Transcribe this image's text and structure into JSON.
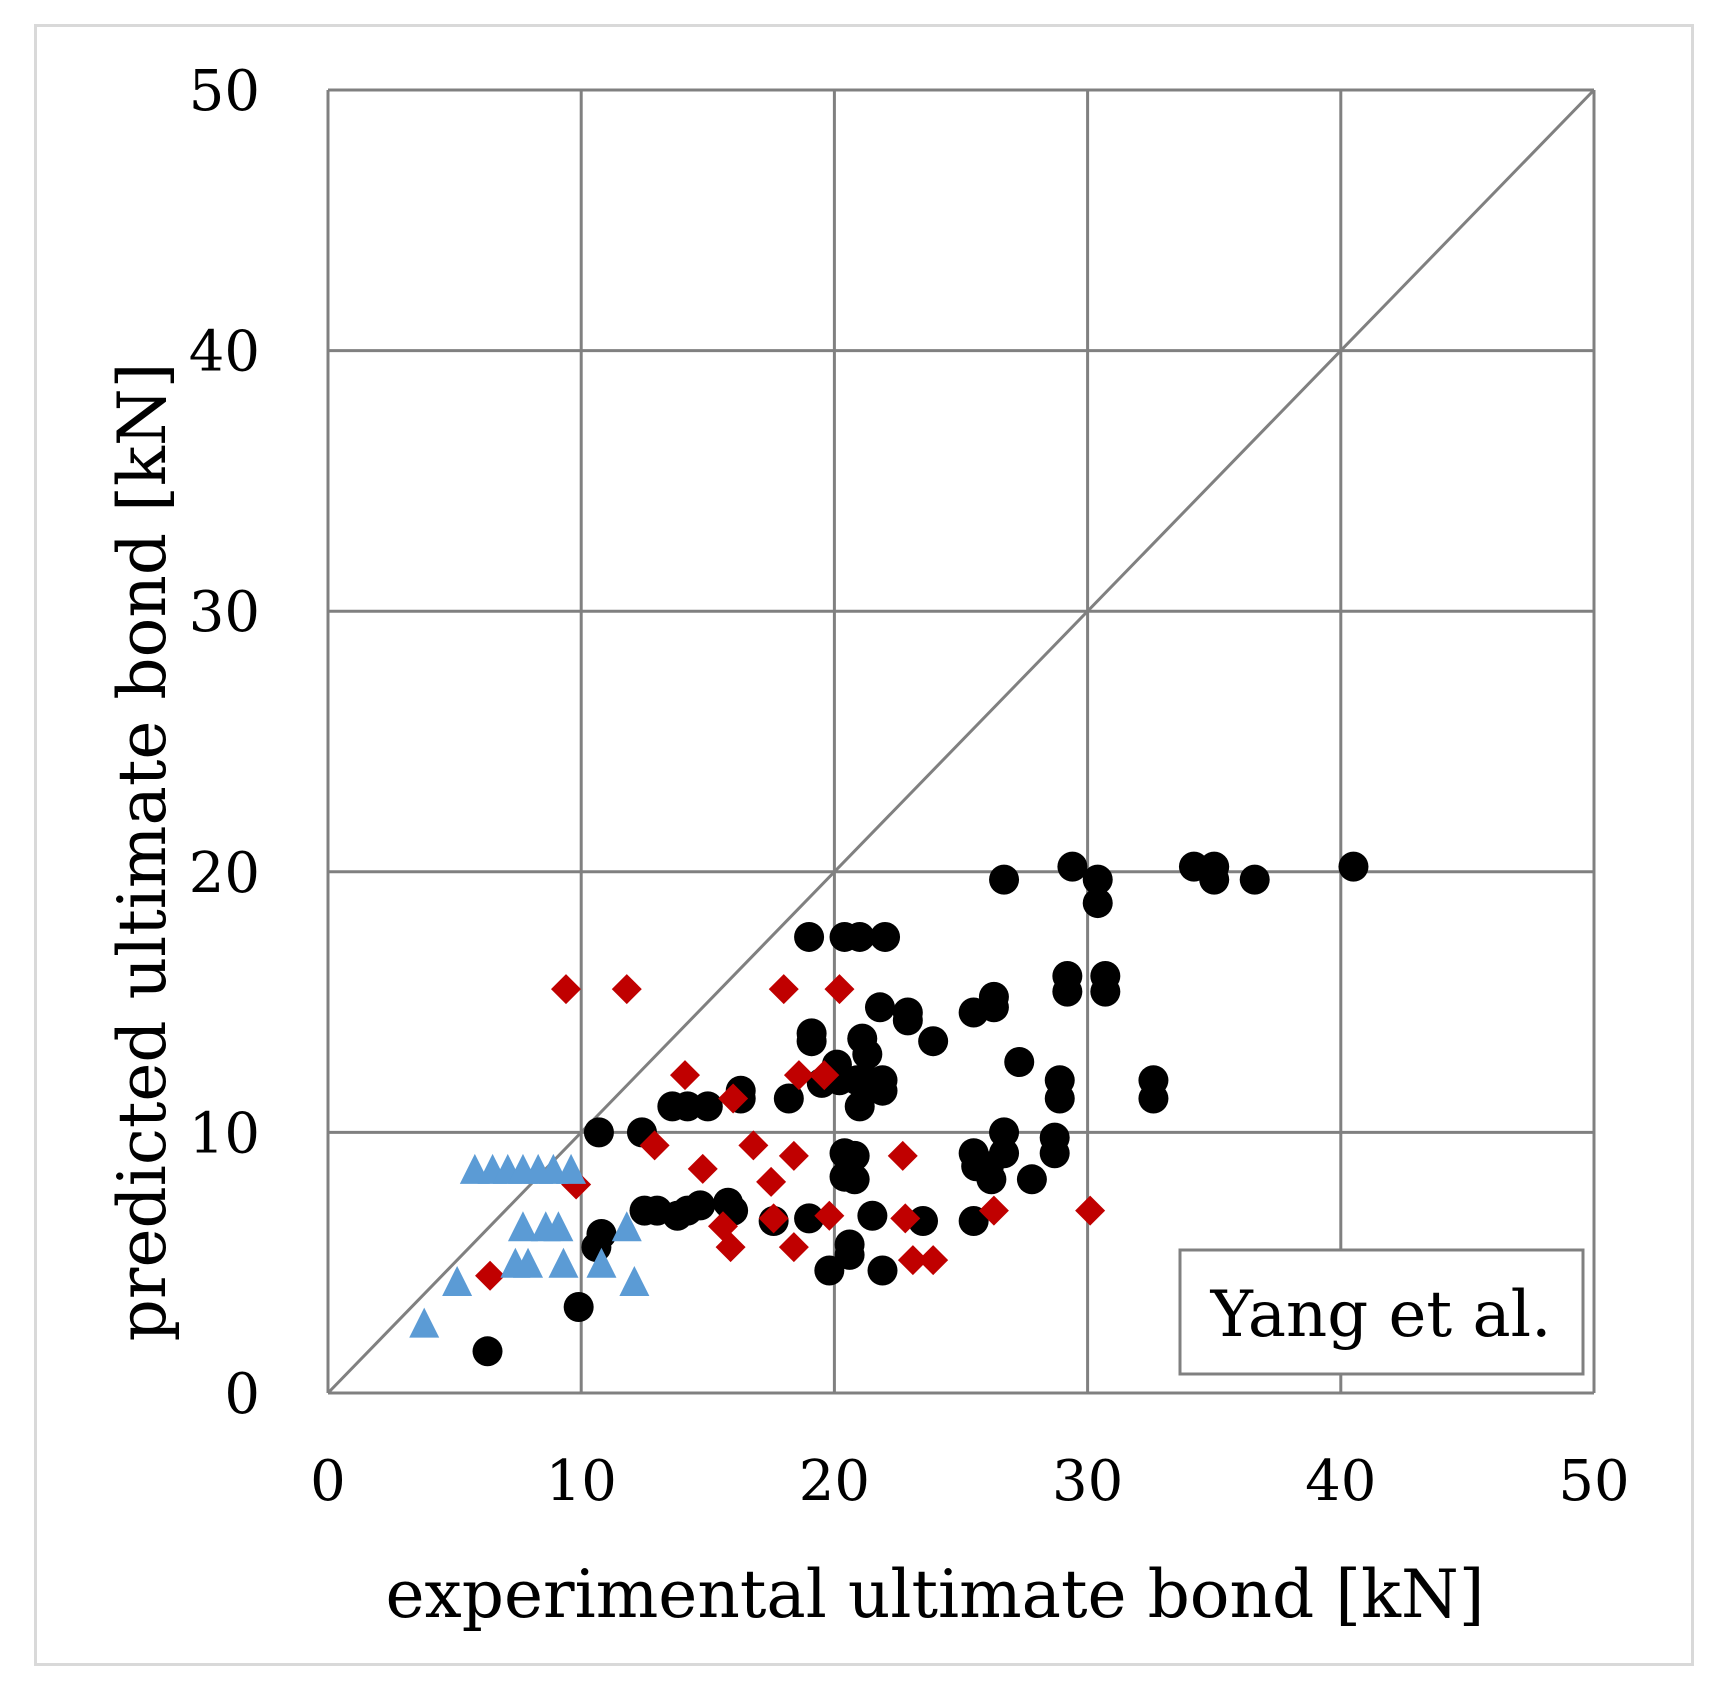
{
  "chart_data": {
    "type": "scatter",
    "title": "",
    "xlabel": "experimental ultimate bond [kN]",
    "ylabel": "predicted ultimate bond [kN]",
    "xlim": [
      0,
      50
    ],
    "ylim": [
      0,
      50
    ],
    "xticks": [
      "0",
      "10",
      "20",
      "30",
      "40",
      "50"
    ],
    "yticks": [
      "0",
      "10",
      "20",
      "30",
      "40",
      "50"
    ],
    "grid": true,
    "legend_text": "Yang et al.",
    "legend_position": "bottom-right",
    "reference_line": {
      "name": "equality line",
      "from": [
        0,
        0
      ],
      "to": [
        50,
        50
      ]
    },
    "colors": {
      "circles": "#000000",
      "diamonds": "#c00000",
      "triangles": "#5b9bd5",
      "grid": "#808080"
    },
    "series": [
      {
        "name": "circles",
        "marker": "circle",
        "points": [
          [
            6.3,
            1.6
          ],
          [
            9.9,
            3.3
          ],
          [
            10.7,
            10
          ],
          [
            10.8,
            6.1
          ],
          [
            10.6,
            5.6
          ],
          [
            12.4,
            10
          ],
          [
            12.5,
            7
          ],
          [
            13,
            7
          ],
          [
            13.6,
            11
          ],
          [
            14.2,
            11
          ],
          [
            13.8,
            6.8
          ],
          [
            14.2,
            7
          ],
          [
            14.7,
            7.2
          ],
          [
            15,
            11
          ],
          [
            15.8,
            7.3
          ],
          [
            16,
            7
          ],
          [
            16.3,
            11.6
          ],
          [
            16.3,
            11.3
          ],
          [
            17.6,
            6.6
          ],
          [
            18.2,
            11.3
          ],
          [
            19,
            17.5
          ],
          [
            19.1,
            13.8
          ],
          [
            19.1,
            13.5
          ],
          [
            19,
            6.7
          ],
          [
            19.5,
            11.9
          ],
          [
            19.8,
            4.7
          ],
          [
            20.1,
            12.6
          ],
          [
            20.2,
            12
          ],
          [
            20.4,
            9.2
          ],
          [
            20.4,
            8.3
          ],
          [
            20.4,
            17.5
          ],
          [
            20.6,
            5.7
          ],
          [
            20.6,
            5.3
          ],
          [
            20.8,
            8.2
          ],
          [
            20.8,
            9.1
          ],
          [
            20.9,
            12
          ],
          [
            21,
            17.5
          ],
          [
            21,
            11
          ],
          [
            21.1,
            13.6
          ],
          [
            21.3,
            13
          ],
          [
            21.3,
            12
          ],
          [
            21.5,
            6.8
          ],
          [
            21.8,
            14.8
          ],
          [
            21.9,
            11.6
          ],
          [
            21.9,
            12
          ],
          [
            21.9,
            4.7
          ],
          [
            22,
            17.5
          ],
          [
            22.9,
            14.6
          ],
          [
            22.9,
            14.3
          ],
          [
            23.5,
            6.6
          ],
          [
            23.9,
            13.5
          ],
          [
            25.5,
            14.6
          ],
          [
            25.5,
            9.2
          ],
          [
            25.5,
            6.6
          ],
          [
            25.6,
            8.7
          ],
          [
            26.1,
            8.7
          ],
          [
            26.2,
            8.2
          ],
          [
            26.3,
            15.2
          ],
          [
            26.3,
            14.8
          ],
          [
            26.7,
            19.7
          ],
          [
            26.7,
            10
          ],
          [
            26.7,
            9.2
          ],
          [
            27.3,
            12.7
          ],
          [
            27.8,
            8.2
          ],
          [
            28.7,
            9.8
          ],
          [
            28.7,
            9.2
          ],
          [
            28.9,
            12
          ],
          [
            28.9,
            11.3
          ],
          [
            29.2,
            16
          ],
          [
            29.2,
            15.4
          ],
          [
            29.4,
            20.2
          ],
          [
            30.4,
            19.7
          ],
          [
            30.4,
            18.8
          ],
          [
            30.7,
            16
          ],
          [
            30.7,
            15.4
          ],
          [
            32.6,
            12
          ],
          [
            32.6,
            11.3
          ],
          [
            34.2,
            20.2
          ],
          [
            35,
            20.2
          ],
          [
            35,
            19.7
          ],
          [
            36.6,
            19.7
          ],
          [
            40.5,
            20.2
          ]
        ]
      },
      {
        "name": "diamonds",
        "marker": "diamond",
        "points": [
          [
            6.4,
            4.5
          ],
          [
            9.4,
            15.5
          ],
          [
            9.8,
            8
          ],
          [
            11.8,
            15.5
          ],
          [
            12.9,
            9.5
          ],
          [
            14.1,
            12.2
          ],
          [
            14.8,
            8.6
          ],
          [
            15.6,
            6.4
          ],
          [
            15.9,
            5.6
          ],
          [
            16,
            11.3
          ],
          [
            16.8,
            9.5
          ],
          [
            17.5,
            8.1
          ],
          [
            17.6,
            6.7
          ],
          [
            18,
            15.5
          ],
          [
            18.4,
            9.1
          ],
          [
            18.4,
            5.6
          ],
          [
            18.6,
            12.2
          ],
          [
            19.6,
            12.2
          ],
          [
            19.8,
            6.8
          ],
          [
            20.2,
            15.5
          ],
          [
            22.7,
            9.1
          ],
          [
            22.8,
            6.7
          ],
          [
            23.1,
            5.1
          ],
          [
            23.9,
            5.1
          ],
          [
            26.3,
            7
          ],
          [
            30.1,
            7
          ]
        ]
      },
      {
        "name": "triangles",
        "marker": "triangle",
        "points": [
          [
            3.8,
            2.7
          ],
          [
            5.1,
            4.3
          ],
          [
            5.8,
            8.6
          ],
          [
            6.5,
            8.6
          ],
          [
            7.1,
            8.6
          ],
          [
            7.4,
            5
          ],
          [
            7.7,
            8.6
          ],
          [
            7.7,
            6.4
          ],
          [
            7.9,
            5
          ],
          [
            8.3,
            8.6
          ],
          [
            8.6,
            6.4
          ],
          [
            8.9,
            8.6
          ],
          [
            9.1,
            6.4
          ],
          [
            9.3,
            5
          ],
          [
            9.6,
            8.6
          ],
          [
            10.8,
            5
          ],
          [
            11.8,
            6.4
          ],
          [
            12.1,
            4.3
          ]
        ]
      }
    ]
  }
}
